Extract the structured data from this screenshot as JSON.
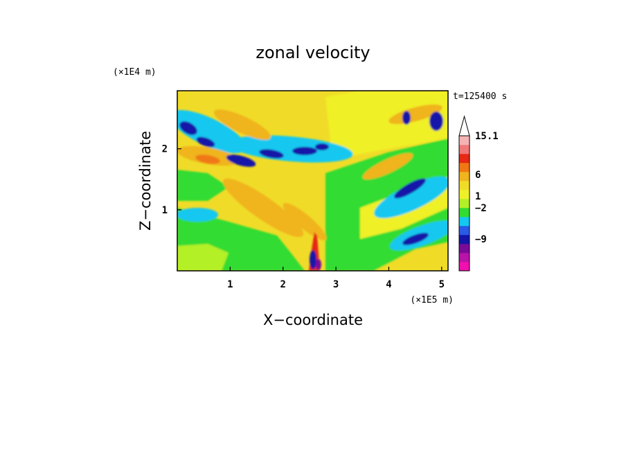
{
  "chart_data": {
    "type": "heatmap",
    "title": "zonal velocity",
    "xlabel": "X−coordinate",
    "ylabel": "Z−coordinate",
    "x_scale_label": "(×1E5 m)",
    "y_scale_label": "(×1E4 m)",
    "time_label": "t=125400 s",
    "xlim": [
      0,
      5.12
    ],
    "ylim": [
      0,
      2.95
    ],
    "x_ticks": [
      1,
      2,
      3,
      4,
      5
    ],
    "x_tick_labels": [
      "1",
      "2",
      "3",
      "4",
      "5"
    ],
    "y_ticks": [
      1,
      2
    ],
    "y_tick_labels": [
      "1",
      "2"
    ],
    "colorbar": {
      "levels_low_to_high": [
        {
          "color": "#f010b0"
        },
        {
          "color": "#b814a8"
        },
        {
          "color": "#7a0a98"
        },
        {
          "color": "#1414a8"
        },
        {
          "color": "#2a5ae6"
        },
        {
          "color": "#14c8f0"
        },
        {
          "color": "#32dc32"
        },
        {
          "color": "#b4f028"
        },
        {
          "color": "#f0f028"
        },
        {
          "color": "#f0dc28"
        },
        {
          "color": "#f0b41e"
        },
        {
          "color": "#f07814"
        },
        {
          "color": "#e62814"
        },
        {
          "color": "#f07878"
        },
        {
          "color": "#f5b4b4"
        }
      ],
      "tick_labels": [
        "15.1",
        "6",
        "1",
        "−2",
        "−9"
      ],
      "extend_max": true
    },
    "features": [
      {
        "label": "background",
        "value": 1
      },
      {
        "label": "left lower region",
        "value": 1
      },
      {
        "label": "diagonal positive band",
        "value": 6
      },
      {
        "label": "upper-left negative band",
        "value": -9
      },
      {
        "label": "right-side negative bands",
        "value": -9
      },
      {
        "label": "source near x=2.5 (positive)",
        "value": 15.1
      },
      {
        "label": "source near x=2.5 (negative)",
        "value": -9
      }
    ]
  }
}
